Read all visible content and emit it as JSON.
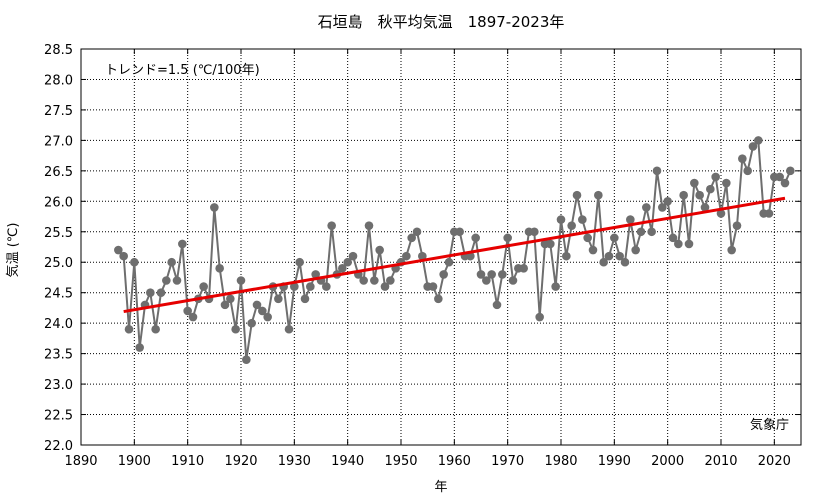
{
  "chart_data": {
    "type": "line",
    "title": "石垣島　秋平均気温　1897-2023年",
    "xlabel": "年",
    "ylabel": "気温 (℃)",
    "annotation": "トレンド=1.5 (℃/100年)",
    "source": "気象庁",
    "xlim": [
      1890,
      2025
    ],
    "ylim": [
      22.0,
      28.5
    ],
    "x_ticks": [
      1890,
      1900,
      1910,
      1920,
      1930,
      1940,
      1950,
      1960,
      1970,
      1980,
      1990,
      2000,
      2010,
      2020
    ],
    "y_ticks": [
      22.0,
      22.5,
      23.0,
      23.5,
      24.0,
      24.5,
      25.0,
      25.5,
      26.0,
      26.5,
      27.0,
      27.5,
      28.0,
      28.5
    ],
    "grid": true,
    "series": [
      {
        "color": "#6e6e6e",
        "x": [
          1897,
          1898,
          1899,
          1900,
          1901,
          1902,
          1903,
          1904,
          1905,
          1906,
          1907,
          1908,
          1909,
          1910,
          1911,
          1912,
          1913,
          1914,
          1915,
          1916,
          1917,
          1918,
          1919,
          1920,
          1921,
          1922,
          1923,
          1924,
          1925,
          1926,
          1927,
          1928,
          1929,
          1930,
          1931,
          1932,
          1933,
          1934,
          1935,
          1936,
          1937,
          1938,
          1939,
          1940,
          1941,
          1942,
          1943,
          1944,
          1945,
          1946,
          1947,
          1948,
          1949,
          1950,
          1951,
          1952,
          1953,
          1954,
          1955,
          1956,
          1957,
          1958,
          1959,
          1960,
          1961,
          1962,
          1963,
          1964,
          1965,
          1966,
          1967,
          1968,
          1969,
          1970,
          1971,
          1972,
          1973,
          1974,
          1975,
          1976,
          1977,
          1978,
          1979,
          1980,
          1981,
          1982,
          1983,
          1984,
          1985,
          1986,
          1987,
          1988,
          1989,
          1990,
          1991,
          1992,
          1993,
          1994,
          1995,
          1996,
          1997,
          1998,
          1999,
          2000,
          2001,
          2002,
          2003,
          2004,
          2005,
          2006,
          2007,
          2008,
          2009,
          2010,
          2011,
          2012,
          2013,
          2014,
          2015,
          2016,
          2017,
          2018,
          2019,
          2020,
          2021,
          2022,
          2023
        ],
        "y": [
          25.2,
          25.1,
          23.9,
          25.0,
          23.6,
          24.3,
          24.5,
          23.9,
          24.5,
          24.7,
          25.0,
          24.7,
          25.3,
          24.2,
          24.1,
          24.4,
          24.6,
          24.4,
          25.9,
          24.9,
          24.3,
          24.4,
          23.9,
          24.7,
          23.4,
          24.0,
          24.3,
          24.2,
          24.1,
          24.6,
          24.4,
          24.6,
          23.9,
          24.6,
          25.0,
          24.4,
          24.6,
          24.8,
          24.7,
          24.6,
          25.6,
          24.8,
          24.9,
          25.0,
          25.1,
          24.8,
          24.7,
          25.6,
          24.7,
          25.2,
          24.6,
          24.7,
          24.9,
          25.0,
          25.1,
          25.4,
          25.5,
          25.1,
          24.6,
          24.6,
          24.4,
          24.8,
          25.0,
          25.5,
          25.5,
          25.1,
          25.1,
          25.4,
          24.8,
          24.7,
          24.8,
          24.3,
          24.8,
          25.4,
          24.7,
          24.9,
          24.9,
          25.5,
          25.5,
          24.1,
          25.3,
          25.3,
          24.6,
          25.7,
          25.1,
          25.6,
          26.1,
          25.7,
          25.4,
          25.2,
          26.1,
          25.0,
          25.1,
          25.4,
          25.1,
          25.0,
          25.7,
          25.2,
          25.5,
          25.9,
          25.5,
          26.5,
          25.9,
          26.0,
          25.4,
          25.3,
          26.1,
          25.3,
          26.3,
          26.1,
          25.9,
          26.2,
          26.4,
          25.8,
          26.3,
          25.2,
          25.6,
          26.7,
          26.5,
          26.9,
          27.0,
          25.8,
          25.8,
          26.4,
          26.4,
          26.3,
          26.5
        ]
      }
    ],
    "trend": {
      "color": "#e60000",
      "x": [
        1898,
        2022
      ],
      "y": [
        24.19,
        26.05
      ]
    }
  }
}
